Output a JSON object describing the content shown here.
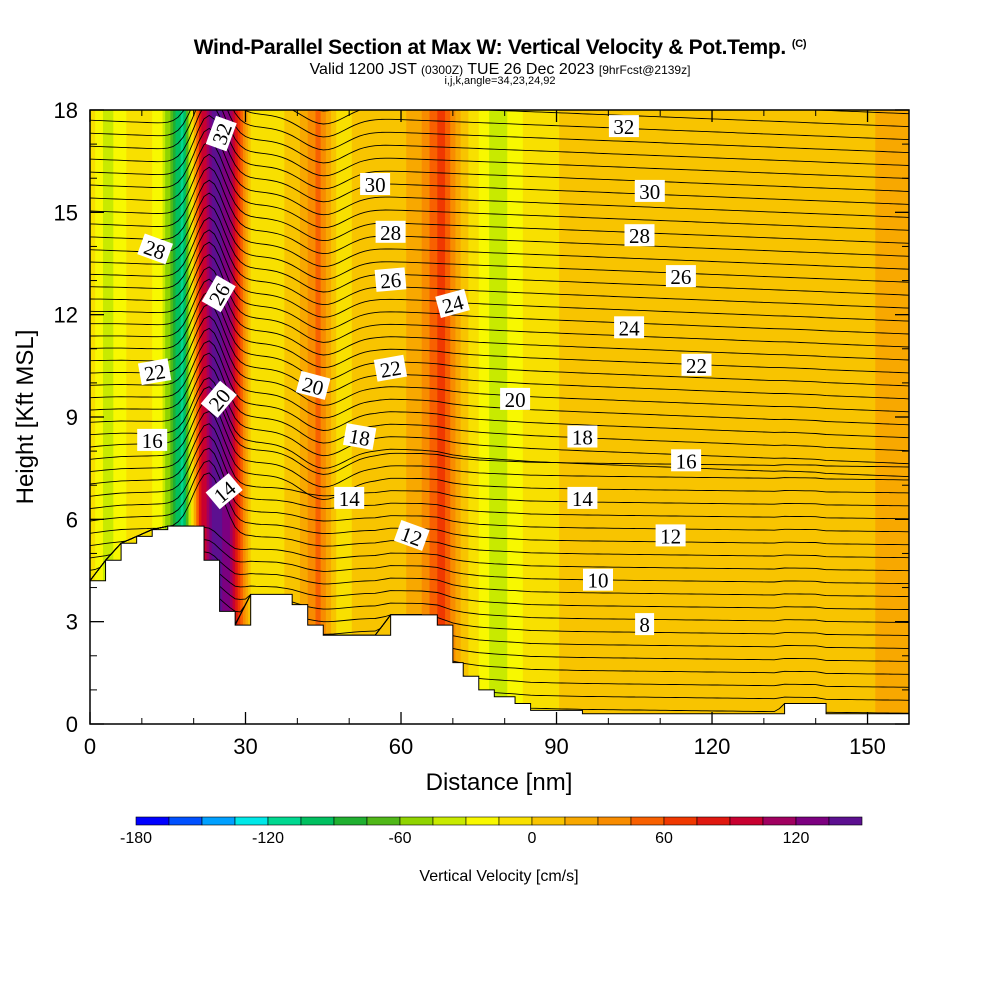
{
  "header": {
    "title": "Wind-Parallel Section at Max W: Vertical Velocity & Pot.Temp.",
    "title_tag": "(C)",
    "subtitle_pre": "Valid 1200 JST",
    "subtitle_utc": "(0300Z)",
    "subtitle_date": "TUE 26 Dec 2023",
    "subtitle_fcst": "[9hrFcst@2139z]",
    "subtitle2": "i,j,k,angle=34,23,24,92"
  },
  "chart_data": {
    "type": "contour-section",
    "xlabel": "Distance [nm]",
    "ylabel": "Height [Kft MSL]",
    "xlim": [
      0,
      158
    ],
    "ylim": [
      0,
      18
    ],
    "xticks": [
      0,
      30,
      60,
      90,
      120,
      150
    ],
    "yticks": [
      0,
      3,
      6,
      9,
      12,
      15,
      18
    ],
    "grid": false,
    "colorbar": {
      "title": "Vertical Velocity [cm/s]",
      "bounds": [
        -180,
        -165,
        -150,
        -135,
        -120,
        -105,
        -90,
        -75,
        -60,
        -45,
        -30,
        -15,
        0,
        15,
        30,
        45,
        60,
        75,
        90,
        105,
        120,
        135,
        150
      ],
      "colors": [
        "#0000ff",
        "#0050ff",
        "#00a0ff",
        "#00e8e8",
        "#00d890",
        "#00c060",
        "#20b030",
        "#50b818",
        "#90d400",
        "#c8ea00",
        "#f8f800",
        "#f8e000",
        "#f8c400",
        "#f8a800",
        "#f88c00",
        "#f86000",
        "#f03800",
        "#e01810",
        "#c80030",
        "#a00060",
        "#7c0080",
        "#5c1090"
      ],
      "tick_values": [
        -180,
        -120,
        -60,
        0,
        60,
        120
      ],
      "tick_labels": [
        "-180",
        "-120",
        "-60",
        "0",
        "60",
        "120"
      ]
    },
    "vertical_velocity_bands": [
      {
        "x": 0,
        "w": 0
      },
      {
        "x": 3,
        "w": -40
      },
      {
        "x": 6,
        "w": -20
      },
      {
        "x": 10,
        "w": 0
      },
      {
        "x": 14,
        "w": -30
      },
      {
        "x": 18,
        "w": -120
      },
      {
        "x": 21,
        "w": 70
      },
      {
        "x": 24,
        "w": 150
      },
      {
        "x": 27,
        "w": 120
      },
      {
        "x": 31,
        "w": 0
      },
      {
        "x": 35,
        "w": -10
      },
      {
        "x": 40,
        "w": 10
      },
      {
        "x": 44,
        "w": 50
      },
      {
        "x": 48,
        "w": -10
      },
      {
        "x": 52,
        "w": 5
      },
      {
        "x": 60,
        "w": 10
      },
      {
        "x": 64,
        "w": 30
      },
      {
        "x": 68,
        "w": 70
      },
      {
        "x": 72,
        "w": 10
      },
      {
        "x": 78,
        "w": -40
      },
      {
        "x": 86,
        "w": -5
      },
      {
        "x": 95,
        "w": 5
      },
      {
        "x": 108,
        "w": 15
      },
      {
        "x": 120,
        "w": 0
      },
      {
        "x": 130,
        "w": 15
      },
      {
        "x": 145,
        "w": 10
      },
      {
        "x": 158,
        "w": 20
      }
    ],
    "potential_temperature_labels": [
      {
        "value": "32",
        "x": 25.5,
        "y": 17.3,
        "angle": -70
      },
      {
        "value": "32",
        "x": 103,
        "y": 17.5,
        "angle": 0
      },
      {
        "value": "30",
        "x": 55,
        "y": 15.8,
        "angle": 0
      },
      {
        "value": "30",
        "x": 108,
        "y": 15.6,
        "angle": 0
      },
      {
        "value": "28",
        "x": 12.5,
        "y": 13.9,
        "angle": 20
      },
      {
        "value": "28",
        "x": 58,
        "y": 14.4,
        "angle": 0
      },
      {
        "value": "28",
        "x": 106,
        "y": 14.3,
        "angle": 0
      },
      {
        "value": "26",
        "x": 25,
        "y": 12.6,
        "angle": -60
      },
      {
        "value": "26",
        "x": 58,
        "y": 13.0,
        "angle": -5
      },
      {
        "value": "26",
        "x": 114,
        "y": 13.1,
        "angle": 0
      },
      {
        "value": "24",
        "x": 70,
        "y": 12.3,
        "angle": -15
      },
      {
        "value": "24",
        "x": 104,
        "y": 11.6,
        "angle": 0
      },
      {
        "value": "22",
        "x": 12.5,
        "y": 10.3,
        "angle": -10
      },
      {
        "value": "22",
        "x": 58,
        "y": 10.4,
        "angle": -10
      },
      {
        "value": "22",
        "x": 117,
        "y": 10.5,
        "angle": 0
      },
      {
        "value": "20",
        "x": 25,
        "y": 9.5,
        "angle": -50
      },
      {
        "value": "20",
        "x": 43,
        "y": 9.9,
        "angle": 15
      },
      {
        "value": "20",
        "x": 82,
        "y": 9.5,
        "angle": 0
      },
      {
        "value": "18",
        "x": 52,
        "y": 8.4,
        "angle": 10
      },
      {
        "value": "18",
        "x": 95,
        "y": 8.4,
        "angle": 0
      },
      {
        "value": "16",
        "x": 12,
        "y": 8.3,
        "angle": 0
      },
      {
        "value": "16",
        "x": 115,
        "y": 7.7,
        "angle": 0
      },
      {
        "value": "14",
        "x": 26,
        "y": 6.8,
        "angle": -40
      },
      {
        "value": "14",
        "x": 50,
        "y": 6.6,
        "angle": 0
      },
      {
        "value": "14",
        "x": 95,
        "y": 6.6,
        "angle": 0
      },
      {
        "value": "12",
        "x": 62,
        "y": 5.5,
        "angle": 20
      },
      {
        "value": "12",
        "x": 112,
        "y": 5.5,
        "angle": 0
      },
      {
        "value": "10",
        "x": 98,
        "y": 4.2,
        "angle": 0
      },
      {
        "value": "8",
        "x": 107,
        "y": 2.9,
        "angle": 0
      }
    ],
    "terrain_top_kft": [
      {
        "x": 0,
        "y": 4.2
      },
      {
        "x": 3,
        "y": 4.8
      },
      {
        "x": 6,
        "y": 5.3
      },
      {
        "x": 9,
        "y": 5.5
      },
      {
        "x": 12,
        "y": 5.7
      },
      {
        "x": 15,
        "y": 5.8
      },
      {
        "x": 20,
        "y": 5.8
      },
      {
        "x": 22,
        "y": 4.8
      },
      {
        "x": 25,
        "y": 3.3
      },
      {
        "x": 28,
        "y": 2.9
      },
      {
        "x": 31,
        "y": 3.8
      },
      {
        "x": 36,
        "y": 3.8
      },
      {
        "x": 39,
        "y": 3.5
      },
      {
        "x": 42,
        "y": 2.9
      },
      {
        "x": 45,
        "y": 2.6
      },
      {
        "x": 55,
        "y": 2.6
      },
      {
        "x": 58,
        "y": 3.2
      },
      {
        "x": 64,
        "y": 3.2
      },
      {
        "x": 67,
        "y": 2.9
      },
      {
        "x": 70,
        "y": 1.8
      },
      {
        "x": 72,
        "y": 1.4
      },
      {
        "x": 75,
        "y": 1.0
      },
      {
        "x": 78,
        "y": 0.8
      },
      {
        "x": 82,
        "y": 0.6
      },
      {
        "x": 85,
        "y": 0.4
      },
      {
        "x": 95,
        "y": 0.3
      },
      {
        "x": 132,
        "y": 0.3
      },
      {
        "x": 134,
        "y": 0.6
      },
      {
        "x": 140,
        "y": 0.6
      },
      {
        "x": 142,
        "y": 0.3
      },
      {
        "x": 158,
        "y": 0.3
      }
    ]
  }
}
